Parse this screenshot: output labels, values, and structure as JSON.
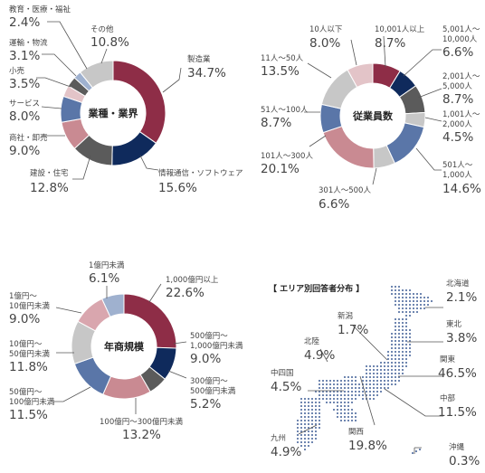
{
  "colors": {
    "crimson": "#8e2d47",
    "navy": "#0f2a5c",
    "dark_gray": "#5b5b5b",
    "rose": "#c98a92",
    "steel": "#5a76a8",
    "light_rose": "#e3c4c8",
    "light_gray": "#c7c7c7",
    "pale_blue": "#9fb1cf",
    "pink": "#d9a6ae",
    "map_dot": "#6f86b0"
  },
  "chart_data": [
    {
      "type": "pie",
      "title": "業種・業界",
      "slices": [
        {
          "label": "製造業",
          "value": 34.7,
          "value_text": "34.7%",
          "color": "crimson"
        },
        {
          "label": "情報通信・ソフトウェア",
          "value": 15.6,
          "value_text": "15.6%",
          "color": "navy"
        },
        {
          "label": "建設・住宅",
          "value": 12.8,
          "value_text": "12.8%",
          "color": "dark_gray"
        },
        {
          "label": "商社・卸売",
          "value": 9.0,
          "value_text": "9.0%",
          "color": "rose"
        },
        {
          "label": "サービス",
          "value": 8.0,
          "value_text": "8.0%",
          "color": "steel"
        },
        {
          "label": "小売",
          "value": 3.5,
          "value_text": "3.5%",
          "color": "light_rose"
        },
        {
          "label": "運輸・物流",
          "value": 3.1,
          "value_text": "3.1%",
          "color": "dark_gray"
        },
        {
          "label": "教育・医療・福祉",
          "value": 2.4,
          "value_text": "2.4%",
          "color": "pale_blue"
        },
        {
          "label": "その他",
          "value": 10.8,
          "value_text": "10.8%",
          "color": "light_gray"
        }
      ]
    },
    {
      "type": "pie",
      "title": "従業員数",
      "slices": [
        {
          "label": "10,001人以上",
          "value": 8.7,
          "value_text": "8.7%",
          "color": "crimson"
        },
        {
          "label": "5,001人～10,000人",
          "value": 6.6,
          "value_text": "6.6%",
          "color": "navy"
        },
        {
          "label": "2,001人～5,000人",
          "value": 8.7,
          "value_text": "8.7%",
          "color": "dark_gray"
        },
        {
          "label": "1,001人～2,000人",
          "value": 4.5,
          "value_text": "4.5%",
          "color": "light_gray"
        },
        {
          "label": "501人～1,000人",
          "value": 14.6,
          "value_text": "14.6%",
          "color": "steel"
        },
        {
          "label": "301人～500人",
          "value": 6.6,
          "value_text": "6.6%",
          "color": "light_gray"
        },
        {
          "label": "101人～300人",
          "value": 20.1,
          "value_text": "20.1%",
          "color": "rose"
        },
        {
          "label": "51人～100人",
          "value": 8.7,
          "value_text": "8.7%",
          "color": "steel"
        },
        {
          "label": "11人～50人",
          "value": 13.5,
          "value_text": "13.5%",
          "color": "light_gray"
        },
        {
          "label": "10人以下",
          "value": 8.0,
          "value_text": "8.0%",
          "color": "light_rose"
        }
      ]
    },
    {
      "type": "pie",
      "title": "年商規模",
      "slices": [
        {
          "label": "1,000億円以上",
          "value": 22.6,
          "value_text": "22.6%",
          "color": "crimson"
        },
        {
          "label": "500億円～1,000億円未満",
          "value": 9.0,
          "value_text": "9.0%",
          "color": "navy"
        },
        {
          "label": "300億円～500億円未満",
          "value": 5.2,
          "value_text": "5.2%",
          "color": "dark_gray"
        },
        {
          "label": "100億円～300億円未満",
          "value": 13.2,
          "value_text": "13.2%",
          "color": "rose"
        },
        {
          "label": "50億円～100億円未満",
          "value": 11.5,
          "value_text": "11.5%",
          "color": "steel"
        },
        {
          "label": "10億円～50億円未満",
          "value": 11.8,
          "value_text": "11.8%",
          "color": "light_gray"
        },
        {
          "label": "1億円～10億円未満",
          "value": 9.0,
          "value_text": "9.0%",
          "color": "pink"
        },
        {
          "label": "1億円未満",
          "value": 6.1,
          "value_text": "6.1%",
          "color": "pale_blue"
        }
      ]
    }
  ],
  "map": {
    "title": "【 エリア別回答者分布 】",
    "regions": [
      {
        "name": "北海道",
        "value_text": "2.1%"
      },
      {
        "name": "東北",
        "value_text": "3.8%"
      },
      {
        "name": "関東",
        "value_text": "46.5%"
      },
      {
        "name": "中部",
        "value_text": "11.5%"
      },
      {
        "name": "沖縄",
        "value_text": "0.3%"
      },
      {
        "name": "関西",
        "value_text": "19.8%"
      },
      {
        "name": "九州",
        "value_text": "4.9%"
      },
      {
        "name": "中四国",
        "value_text": "4.5%"
      },
      {
        "name": "北陸",
        "value_text": "4.9%"
      },
      {
        "name": "新潟",
        "value_text": "1.7%"
      }
    ]
  }
}
